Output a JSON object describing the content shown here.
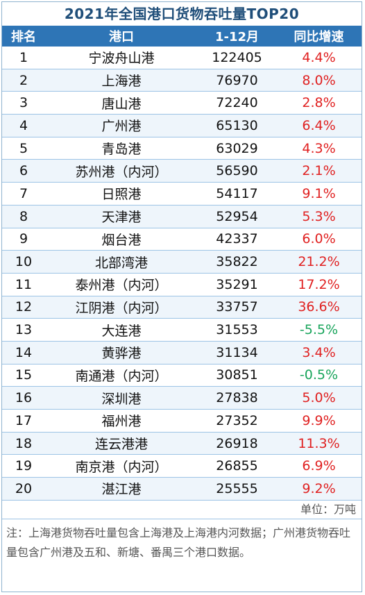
{
  "title": "2021年全国港口货物吞吐量TOP20",
  "headers": {
    "rank": "排名",
    "port": "港口",
    "value": "1-12月",
    "growth": "同比增速"
  },
  "rows": [
    {
      "rank": "1",
      "port": "宁波舟山港",
      "value": "122405",
      "growth": "4.4%",
      "growth_color": "#e02020"
    },
    {
      "rank": "2",
      "port": "上海港",
      "value": "76970",
      "growth": "8.0%",
      "growth_color": "#e02020"
    },
    {
      "rank": "3",
      "port": "唐山港",
      "value": "72240",
      "growth": "2.8%",
      "growth_color": "#e02020"
    },
    {
      "rank": "4",
      "port": "广州港",
      "value": "65130",
      "growth": "6.4%",
      "growth_color": "#e02020"
    },
    {
      "rank": "5",
      "port": "青岛港",
      "value": "63029",
      "growth": "4.3%",
      "growth_color": "#e02020"
    },
    {
      "rank": "6",
      "port": "苏州港（内河）",
      "value": "56590",
      "growth": "2.1%",
      "growth_color": "#e02020"
    },
    {
      "rank": "7",
      "port": "日照港",
      "value": "54117",
      "growth": "9.1%",
      "growth_color": "#e02020"
    },
    {
      "rank": "8",
      "port": "天津港",
      "value": "52954",
      "growth": "5.3%",
      "growth_color": "#e02020"
    },
    {
      "rank": "9",
      "port": "烟台港",
      "value": "42337",
      "growth": "6.0%",
      "growth_color": "#e02020"
    },
    {
      "rank": "10",
      "port": "北部湾港",
      "value": "35822",
      "growth": "21.2%",
      "growth_color": "#e02020"
    },
    {
      "rank": "11",
      "port": "泰州港（内河）",
      "value": "35291",
      "growth": "17.2%",
      "growth_color": "#e02020"
    },
    {
      "rank": "12",
      "port": "江阴港（内河）",
      "value": "33757",
      "growth": "36.6%",
      "growth_color": "#e02020"
    },
    {
      "rank": "13",
      "port": "大连港",
      "value": "31553",
      "growth": "-5.5%",
      "growth_color": "#17a45a"
    },
    {
      "rank": "14",
      "port": "黄骅港",
      "value": "31134",
      "growth": "3.4%",
      "growth_color": "#e02020"
    },
    {
      "rank": "15",
      "port": "南通港（内河）",
      "value": "30851",
      "growth": "-0.5%",
      "growth_color": "#17a45a"
    },
    {
      "rank": "16",
      "port": "深圳港",
      "value": "27838",
      "growth": "5.0%",
      "growth_color": "#e02020"
    },
    {
      "rank": "17",
      "port": "福州港",
      "value": "27352",
      "growth": "9.9%",
      "growth_color": "#e02020"
    },
    {
      "rank": "18",
      "port": "连云港港",
      "value": "26918",
      "growth": "11.3%",
      "growth_color": "#e02020"
    },
    {
      "rank": "19",
      "port": "南京港（内河）",
      "value": "26855",
      "growth": "6.9%",
      "growth_color": "#e02020"
    },
    {
      "rank": "20",
      "port": "湛江港",
      "value": "25555",
      "growth": "9.2%",
      "growth_color": "#e02020"
    }
  ],
  "unit": "单位：万吨",
  "note": "注：上海港货物吞吐量包含上海港及上海港内河数据；广州港货物吞吐量包含广州港及五和、新塘、番禺三个港口数据。"
}
